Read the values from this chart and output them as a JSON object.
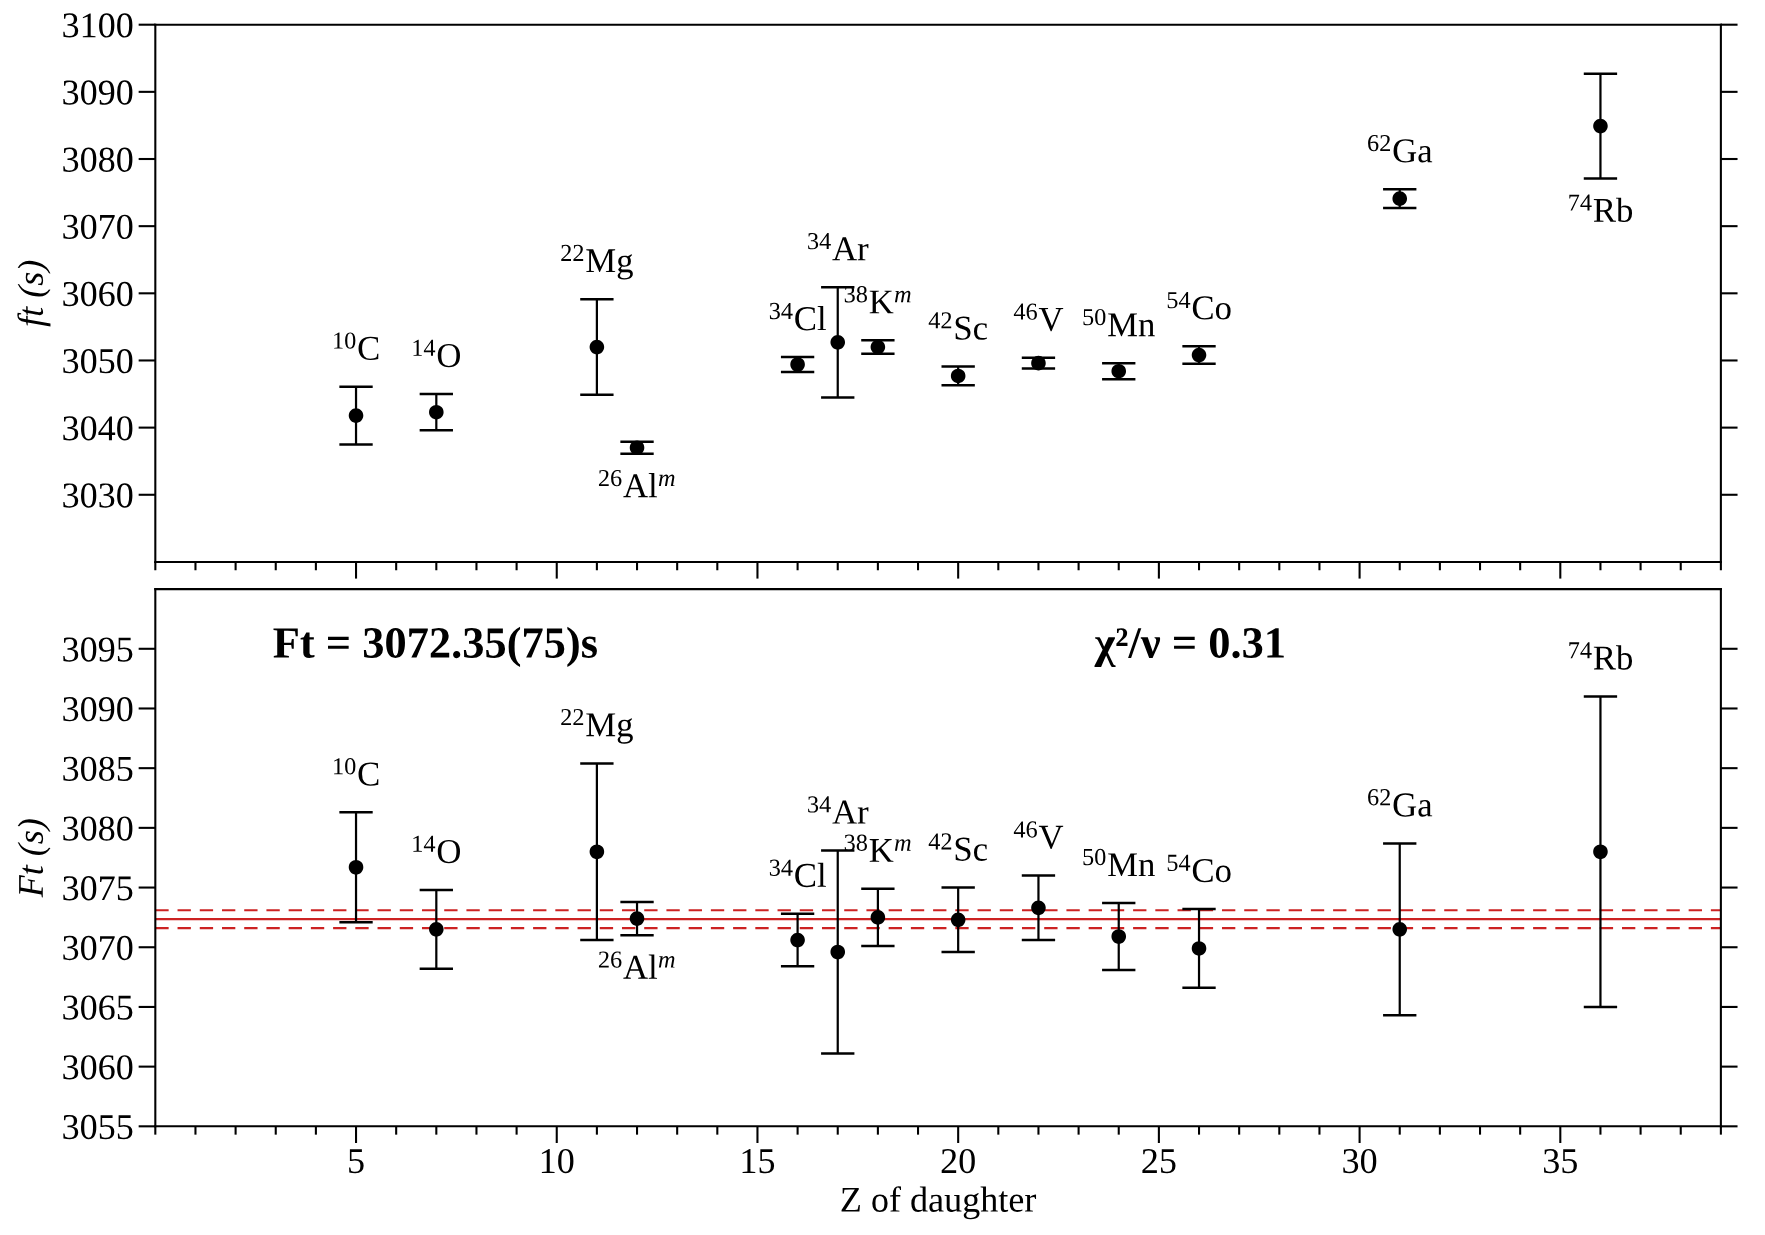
{
  "chart_data": [
    {
      "type": "scatter",
      "ylabel": "ft (s)",
      "x": [
        5,
        7,
        11,
        12,
        16,
        17,
        18,
        20,
        22,
        24,
        26,
        31,
        36
      ],
      "values": [
        3041.8,
        3042.3,
        3052.0,
        3037.0,
        3049.4,
        3052.7,
        3052.0,
        3047.7,
        3049.6,
        3048.4,
        3050.8,
        3074.1,
        3084.9
      ],
      "errors": [
        4.3,
        2.7,
        7.1,
        0.9,
        1.1,
        8.2,
        1.0,
        1.4,
        0.8,
        1.2,
        1.3,
        1.4,
        7.8
      ],
      "color": "#000000",
      "marker": "circle",
      "xlim": [
        0,
        39
      ],
      "xticks": [
        5,
        10,
        15,
        20,
        25,
        30,
        35
      ],
      "ylim": [
        3020,
        3100
      ],
      "yticks": [
        3030,
        3040,
        3050,
        3060,
        3070,
        3080,
        3090,
        3100
      ],
      "tick_labels": "y",
      "annotations": [
        "$^{10}$C",
        "$^{14}$O",
        "$^{22}$Mg",
        "$^{26}$Al$^{m}$",
        "$^{34}$Cl",
        "$^{34}$Ar",
        "$^{38}$K$^{m}$",
        "$^{42}$Sc",
        "$^{46}$V",
        "$^{50}$Mn",
        "$^{54}$Co",
        "$^{62}$Ga",
        "$^{74}$Rb"
      ]
    },
    {
      "type": "scatter",
      "ylabel": "Ft (s)",
      "xlabel": "Z of daughter",
      "x": [
        5,
        7,
        11,
        12,
        16,
        17,
        18,
        20,
        22,
        24,
        26,
        31,
        36
      ],
      "values": [
        3076.7,
        3071.5,
        3078.0,
        3072.4,
        3070.6,
        3069.6,
        3072.5,
        3072.3,
        3073.3,
        3070.9,
        3069.9,
        3071.5,
        3078.0
      ],
      "errors": [
        4.6,
        3.3,
        7.4,
        1.4,
        2.2,
        8.5,
        2.4,
        2.7,
        2.7,
        2.8,
        3.3,
        7.2,
        13.0
      ],
      "color": "#000000",
      "marker": "circle",
      "xlim": [
        0,
        39
      ],
      "xticks": [
        5,
        10,
        15,
        20,
        25,
        30,
        35
      ],
      "ylim": [
        3055,
        3100
      ],
      "yticks": [
        3055,
        3060,
        3065,
        3070,
        3075,
        3080,
        3085,
        3090,
        3095
      ],
      "ref_lines": [
        {
          "axis": "y",
          "value": 3072.35,
          "color": "#cc2222",
          "line_style": "solid"
        },
        {
          "axis": "y",
          "value": 3073.1,
          "color": "#cc2222",
          "line_style": "dashed"
        },
        {
          "axis": "y",
          "value": 3071.6,
          "color": "#cc2222",
          "line_style": "dashed"
        }
      ],
      "annotations": [
        "Ft = 3072.35(75)s",
        "χ²/ν = 0.31",
        "$^{10}$C",
        "$^{14}$O",
        "$^{22}$Mg",
        "$^{26}$Al$^{m}$",
        "$^{34}$Cl",
        "$^{34}$Ar",
        "$^{38}$K$^{m}$",
        "$^{42}$Sc",
        "$^{46}$V",
        "$^{50}$Mn",
        "$^{54}$Co",
        "$^{62}$Ga",
        "$^{74}$Rb"
      ]
    }
  ]
}
